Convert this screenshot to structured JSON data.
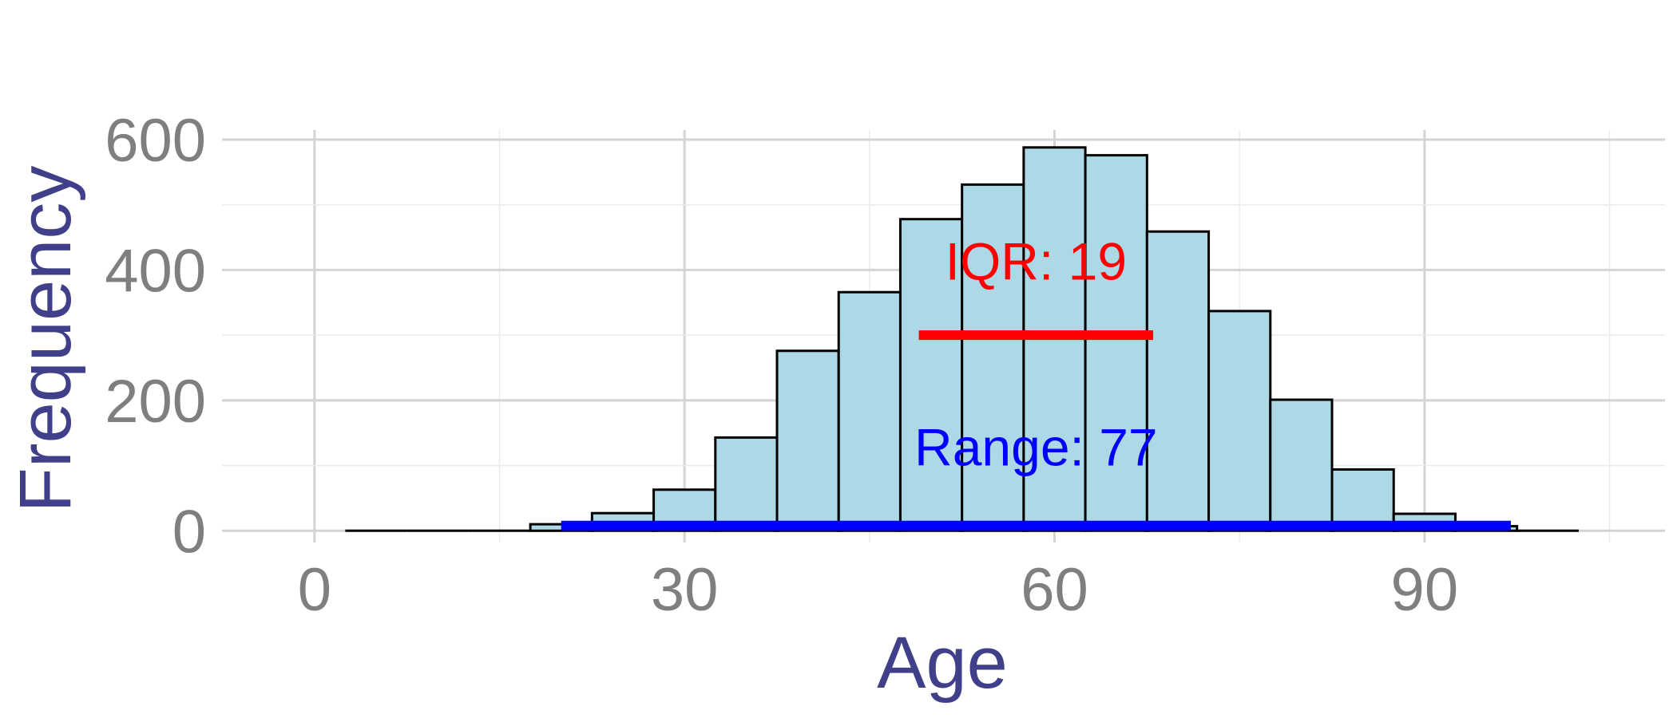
{
  "chart_data": {
    "type": "bar",
    "subtype": "histogram",
    "xlabel": "Age",
    "ylabel": "Frequency",
    "xlim": [
      -7.5,
      109.5
    ],
    "ylim": [
      -18,
      600
    ],
    "x_ticks": [
      0,
      30,
      60,
      90
    ],
    "y_ticks": [
      0,
      200,
      400,
      600
    ],
    "grid": true,
    "bin_width": 5,
    "bins": [
      {
        "x0": 2.5,
        "x1": 7.5,
        "count": 0
      },
      {
        "x0": 7.5,
        "x1": 12.5,
        "count": 0
      },
      {
        "x0": 12.5,
        "x1": 17.5,
        "count": 0
      },
      {
        "x0": 17.5,
        "x1": 22.5,
        "count": 10
      },
      {
        "x0": 22.5,
        "x1": 27.5,
        "count": 27
      },
      {
        "x0": 27.5,
        "x1": 32.5,
        "count": 63
      },
      {
        "x0": 32.5,
        "x1": 37.5,
        "count": 143
      },
      {
        "x0": 37.5,
        "x1": 42.5,
        "count": 276
      },
      {
        "x0": 42.5,
        "x1": 47.5,
        "count": 366
      },
      {
        "x0": 47.5,
        "x1": 52.5,
        "count": 478
      },
      {
        "x0": 52.5,
        "x1": 57.5,
        "count": 531
      },
      {
        "x0": 57.5,
        "x1": 62.5,
        "count": 588
      },
      {
        "x0": 62.5,
        "x1": 67.5,
        "count": 576
      },
      {
        "x0": 67.5,
        "x1": 72.5,
        "count": 459
      },
      {
        "x0": 72.5,
        "x1": 77.5,
        "count": 337
      },
      {
        "x0": 77.5,
        "x1": 82.5,
        "count": 201
      },
      {
        "x0": 82.5,
        "x1": 87.5,
        "count": 94
      },
      {
        "x0": 87.5,
        "x1": 92.5,
        "count": 26
      },
      {
        "x0": 92.5,
        "x1": 97.5,
        "count": 7
      },
      {
        "x0": 97.5,
        "x1": 102.5,
        "count": 0
      }
    ],
    "bar_fill": "#add8e6",
    "bar_outline": "#000000",
    "annotations": [
      {
        "name": "iqr",
        "label": "IQR:  19",
        "color": "#ff0000",
        "x_from": 49,
        "x_to": 68,
        "y": 300,
        "text_x": 58.5,
        "text_y": 385
      },
      {
        "name": "range",
        "label": "Range:  77",
        "color": "#0000ff",
        "x_from": 20,
        "x_to": 97,
        "y": 8,
        "text_x": 58.5,
        "text_y": 100
      }
    ]
  }
}
